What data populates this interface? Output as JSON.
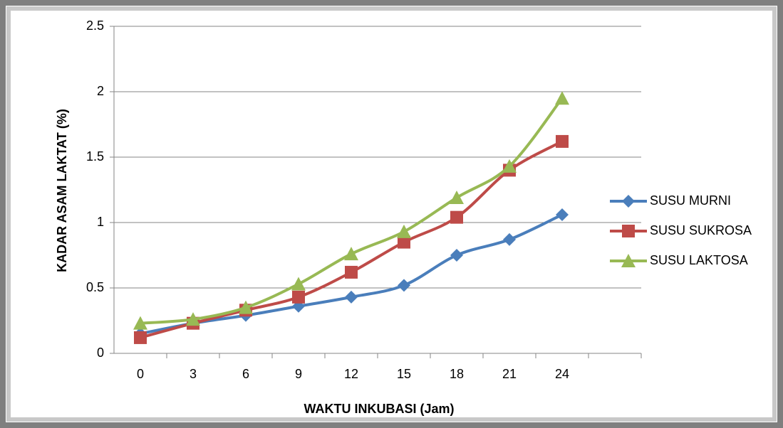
{
  "chart_data": {
    "type": "line",
    "x_label": "WAKTU INKUBASI (Jam)",
    "y_label": "KADAR ASAM LAKTAT (%)",
    "categories": [
      "0",
      "3",
      "6",
      "9",
      "12",
      "15",
      "18",
      "21",
      "24",
      null
    ],
    "series": [
      {
        "name": "SUSU MURNI",
        "color": "#4a7ebb",
        "marker": "diamond",
        "values": [
          0.15,
          0.23,
          0.29,
          0.36,
          0.43,
          0.52,
          0.75,
          0.87,
          1.06,
          null
        ]
      },
      {
        "name": "SUSU SUKROSA",
        "color": "#be4b48",
        "marker": "square",
        "values": [
          0.12,
          0.23,
          0.33,
          0.43,
          0.62,
          0.85,
          1.04,
          1.4,
          1.62,
          null
        ]
      },
      {
        "name": "SUSU LAKTOSA",
        "color": "#98b954",
        "marker": "triangle",
        "values": [
          0.23,
          0.26,
          0.35,
          0.53,
          0.76,
          0.93,
          1.19,
          1.43,
          1.95,
          null
        ]
      }
    ],
    "ylim": [
      0,
      2.5
    ],
    "yticks": [
      0,
      0.5,
      1,
      1.5,
      2,
      2.5
    ],
    "grid": true,
    "legend": "right"
  }
}
